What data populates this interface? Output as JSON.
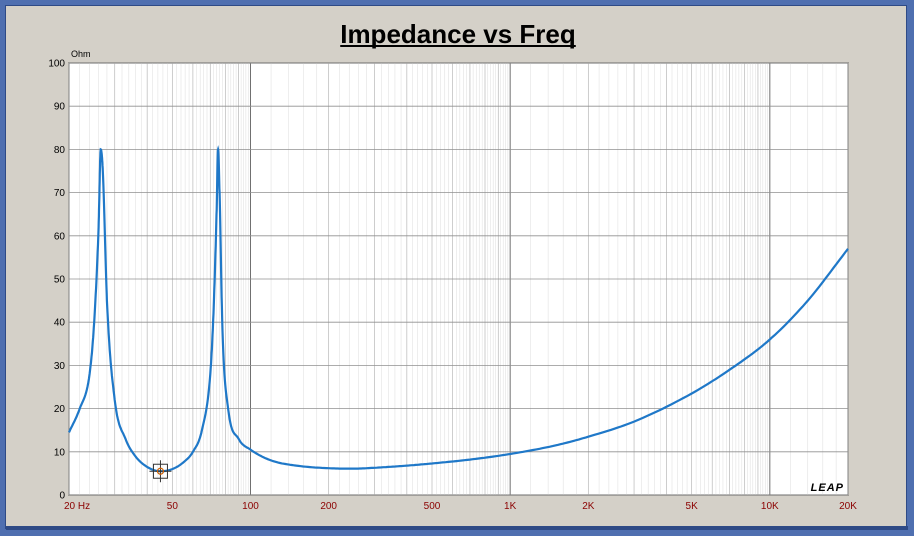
{
  "chart_data": {
    "type": "line",
    "title": "Impedance vs Freq",
    "ylabel": "Ohm",
    "xlabel": "",
    "xscale": "log",
    "xlim": [
      20,
      20000
    ],
    "ylim": [
      0,
      100
    ],
    "grid": true,
    "brand_label": "LEAP",
    "line_color": "#1f78c8",
    "x_tick_labels": [
      {
        "value": 20,
        "label": "20  Hz"
      },
      {
        "value": 50,
        "label": "50"
      },
      {
        "value": 100,
        "label": "100"
      },
      {
        "value": 200,
        "label": "200"
      },
      {
        "value": 500,
        "label": "500"
      },
      {
        "value": 1000,
        "label": "1K"
      },
      {
        "value": 2000,
        "label": "2K"
      },
      {
        "value": 5000,
        "label": "5K"
      },
      {
        "value": 10000,
        "label": "10K"
      },
      {
        "value": 20000,
        "label": "20K"
      }
    ],
    "y_tick_labels": [
      "0",
      "10",
      "20",
      "30",
      "40",
      "50",
      "60",
      "70",
      "80",
      "90",
      "100"
    ],
    "series": [
      {
        "x": [
          20,
          22,
          24,
          25,
          26,
          26.5,
          27,
          28,
          30,
          33,
          36,
          40,
          45,
          50,
          55,
          60,
          65,
          70,
          72,
          74,
          75,
          76,
          78,
          82,
          90,
          100,
          120,
          150,
          200,
          250,
          300,
          400,
          500,
          700,
          1000,
          1500,
          2000,
          3000,
          5000,
          7000,
          10000,
          14000,
          20000
        ],
        "y": [
          14.5,
          20,
          28,
          40,
          62,
          80,
          75,
          45,
          22,
          13,
          9,
          6.5,
          5.5,
          6,
          7.5,
          10,
          15,
          28,
          42,
          65,
          80,
          70,
          38,
          20,
          13,
          10.5,
          8,
          6.8,
          6.2,
          6.1,
          6.3,
          6.8,
          7.3,
          8.2,
          9.5,
          11.5,
          13.5,
          17,
          23.5,
          29,
          36,
          45,
          57
        ]
      }
    ],
    "marker": {
      "x": 45,
      "y": 5.5
    }
  }
}
